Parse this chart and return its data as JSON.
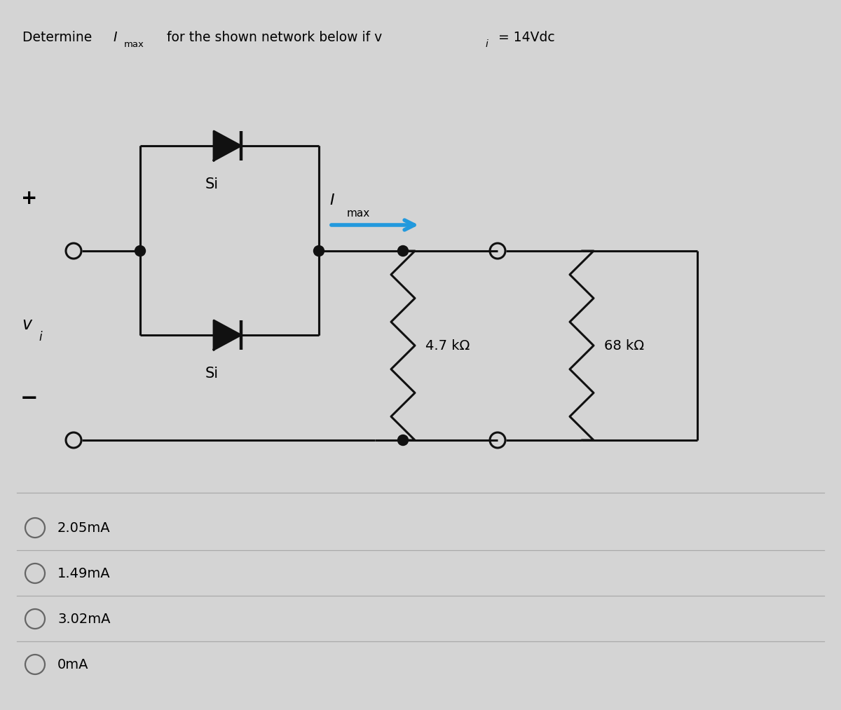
{
  "bg_color": "#d4d4d4",
  "panel_color": "#e2e2e2",
  "options": [
    "2.05mA",
    "1.49mA",
    "3.02mA",
    "0mA"
  ],
  "resistor1": "4.7 kΩ",
  "resistor2": "68 kΩ",
  "si_label": "Si",
  "line_color": "#111111",
  "arrow_color": "#2299dd",
  "lw": 2.2
}
